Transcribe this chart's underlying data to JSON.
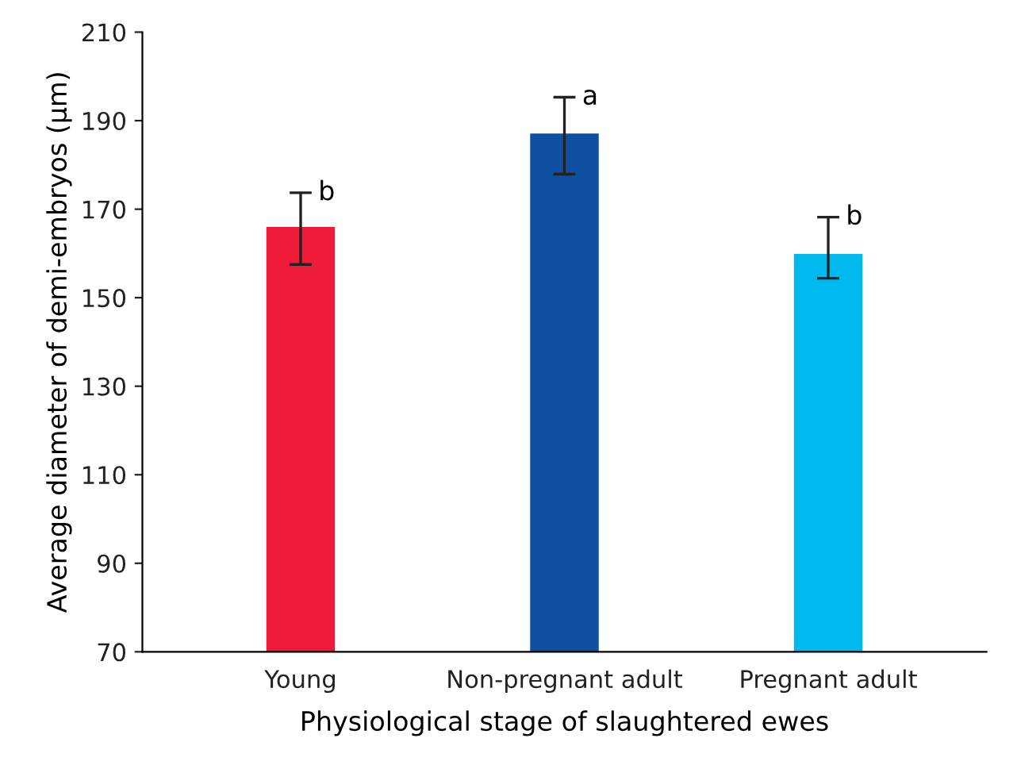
{
  "chart_data": {
    "type": "bar",
    "xlabel": "Physiological stage of slaughtered ewes",
    "ylabel": "Average diameter of demi-embryos (μm)",
    "categories": [
      "Young",
      "Non-pregnant adult",
      "Pregnant adult"
    ],
    "values": [
      166.0,
      187.1,
      159.9
    ],
    "colors": [
      "#ed1b38",
      "#0f4fa0",
      "#00b9ef"
    ],
    "errors": [
      [
        157.5,
        173.7
      ],
      [
        177.9,
        195.3
      ],
      [
        154.4,
        168.2
      ]
    ],
    "annotations": [
      {
        "text": "b",
        "x": "Young",
        "y": 173.7
      },
      {
        "text": "a",
        "x": "Non-pregnant adult",
        "y": 195.3
      },
      {
        "text": "b",
        "x": "Pregnant adult",
        "y": 168.2
      }
    ],
    "ylim": [
      70,
      210
    ],
    "yticks": [
      70,
      90,
      110,
      130,
      150,
      170,
      190,
      210
    ],
    "grid": false,
    "legend": false
  }
}
